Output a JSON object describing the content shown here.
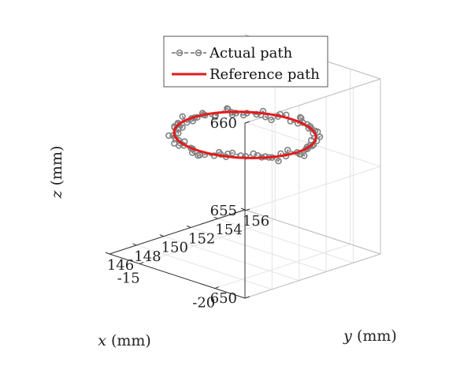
{
  "chart_data": {
    "type": "scatter",
    "view": "3d",
    "axes": {
      "x": {
        "label": "x (mm)",
        "label_var": "x",
        "label_unit": "(mm)",
        "ticks": [
          "-20",
          "-15"
        ],
        "tick_values": [
          -20,
          -15
        ],
        "range": [
          -22,
          -13
        ]
      },
      "y": {
        "label": "y (mm)",
        "label_var": "y",
        "label_unit": "(mm)",
        "ticks": [
          "146",
          "148",
          "150",
          "152",
          "154",
          "156"
        ],
        "tick_values": [
          146,
          148,
          150,
          152,
          154,
          156
        ],
        "range": [
          146,
          156
        ]
      },
      "z": {
        "label": "z (mm)",
        "label_var": "z",
        "label_unit": "(mm)",
        "ticks": [
          "650",
          "655",
          "660"
        ],
        "tick_values": [
          650,
          655,
          660
        ],
        "range": [
          650,
          660
        ]
      }
    },
    "grid": true,
    "legend": {
      "position": "top-center",
      "entries": [
        {
          "name": "Actual path",
          "style": "dashed-circles",
          "color": "#808080"
        },
        {
          "name": "Reference path",
          "style": "solid",
          "color": "#e41a1c"
        }
      ]
    },
    "series": [
      {
        "name": "Reference path",
        "kind": "circle",
        "center": {
          "x": -17.5,
          "y": 151,
          "z": 656.8
        },
        "radius_x": 3.5,
        "radius_y": 3.5,
        "color": "#e41a1c"
      },
      {
        "name": "Actual path",
        "kind": "noisy-circle",
        "center": {
          "x": -17.5,
          "y": 151,
          "z": 656.8
        },
        "radius_x": 3.5,
        "radius_y": 3.5,
        "noise_mm": 0.25,
        "color": "#808080"
      }
    ]
  }
}
